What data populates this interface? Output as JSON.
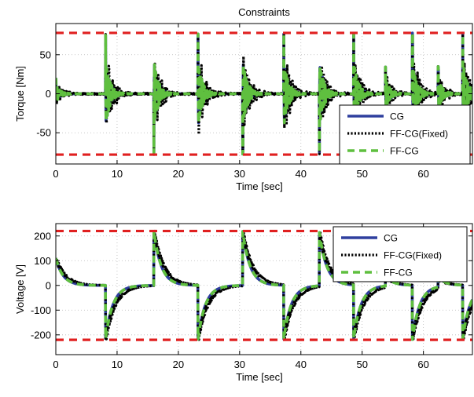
{
  "chart_data": [
    {
      "type": "line",
      "title": "Constraints",
      "xlabel": "Time [sec]",
      "ylabel": "Torque [Nm]",
      "xlim": [
        0,
        68
      ],
      "ylim": [
        -90,
        90
      ],
      "xticks": [
        0,
        10,
        20,
        30,
        40,
        50,
        60
      ],
      "yticks": [
        -50,
        0,
        50
      ],
      "grid": true,
      "legend_position": "bottom-right",
      "constraint": {
        "label": "limits",
        "values": [
          78,
          -78
        ],
        "color": "#e02020"
      },
      "events": [
        {
          "t": 0.0,
          "peak": 20
        },
        {
          "t": 8.1,
          "peak": 78
        },
        {
          "t": 16.0,
          "peak": -78
        },
        {
          "t": 23.2,
          "peak": 78
        },
        {
          "t": 30.5,
          "peak": -78
        },
        {
          "t": 37.2,
          "peak": 78
        },
        {
          "t": 43.0,
          "peak": -78
        },
        {
          "t": 48.6,
          "peak": 78
        },
        {
          "t": 53.8,
          "peak": 35
        },
        {
          "t": 58.2,
          "peak": 78
        },
        {
          "t": 62.4,
          "peak": 35
        },
        {
          "t": 66.4,
          "peak": 78
        }
      ],
      "series": [
        {
          "name": "CG",
          "color": "#2f3f9e",
          "style": "solid"
        },
        {
          "name": "FF-CG(Fixed)",
          "color": "#000000",
          "style": "dotted"
        },
        {
          "name": "FF-CG",
          "color": "#5fbf3f",
          "style": "dashed"
        }
      ]
    },
    {
      "type": "line",
      "title": "",
      "xlabel": "Time [sec]",
      "ylabel": "Voltage [V]",
      "xlim": [
        0,
        68
      ],
      "ylim": [
        -280,
        250
      ],
      "xticks": [
        0,
        10,
        20,
        30,
        40,
        50,
        60
      ],
      "yticks": [
        -200,
        -100,
        0,
        100,
        200
      ],
      "grid": true,
      "legend_position": "top-right",
      "constraint": {
        "label": "limits",
        "values": [
          220,
          -220
        ],
        "color": "#e02020"
      },
      "events": [
        {
          "t": 0.0,
          "peak": 110
        },
        {
          "t": 8.1,
          "peak": -220
        },
        {
          "t": 16.0,
          "peak": 220
        },
        {
          "t": 23.2,
          "peak": -220
        },
        {
          "t": 30.5,
          "peak": 220
        },
        {
          "t": 37.2,
          "peak": -220
        },
        {
          "t": 43.0,
          "peak": 220
        },
        {
          "t": 48.6,
          "peak": -220
        },
        {
          "t": 53.8,
          "peak": 40
        },
        {
          "t": 58.2,
          "peak": -220
        },
        {
          "t": 62.4,
          "peak": 40
        },
        {
          "t": 66.4,
          "peak": -220
        }
      ],
      "series": [
        {
          "name": "CG",
          "color": "#2f3f9e",
          "style": "solid"
        },
        {
          "name": "FF-CG(Fixed)",
          "color": "#000000",
          "style": "dotted"
        },
        {
          "name": "FF-CG",
          "color": "#5fbf3f",
          "style": "dashed"
        }
      ]
    }
  ]
}
